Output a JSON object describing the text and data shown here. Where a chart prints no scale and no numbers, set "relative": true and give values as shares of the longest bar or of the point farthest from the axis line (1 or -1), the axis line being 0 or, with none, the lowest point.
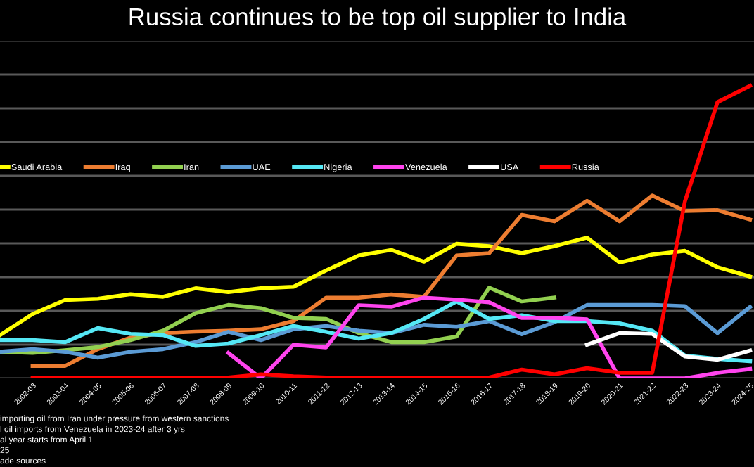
{
  "chart_data": {
    "type": "line",
    "title": "Russia continues to be top oil supplier to India",
    "relative": true,
    "grid": "y",
    "legend": "top",
    "marker": "none",
    "line_style": "solid",
    "categories": [
      null,
      "2002-03",
      "2003-04",
      "2004-05",
      "2005-06",
      "2006-07",
      "2007-08",
      "2008-09",
      "2009-10",
      "2010-11",
      "2011-12",
      "2012-13",
      "2013-14",
      "2014-15",
      "2015-16",
      "2016-17",
      "2017-18",
      "2018-19",
      "2019-20",
      "2020-21",
      "2021-22",
      "2022-23",
      "2023-24",
      "2024-25"
    ],
    "series": [
      {
        "name": "Saudi Arabia",
        "color": "#ffff00",
        "values": [
          0.148,
          0.22,
          0.268,
          0.272,
          0.288,
          0.279,
          0.308,
          0.295,
          0.308,
          0.313,
          0.369,
          0.42,
          0.439,
          0.399,
          0.46,
          0.452,
          0.428,
          0.452,
          0.481,
          0.396,
          0.423,
          0.436,
          0.38,
          0.348
        ]
      },
      {
        "name": "Iraq",
        "color": "#ed7d31",
        "values": [
          null,
          0.043,
          0.043,
          0.1,
          0.139,
          0.155,
          0.16,
          0.163,
          0.168,
          0.196,
          0.276,
          0.276,
          0.287,
          0.279,
          0.42,
          0.428,
          0.559,
          0.537,
          0.607,
          0.537,
          0.625,
          0.572,
          0.575,
          0.543
        ]
      },
      {
        "name": "Iran",
        "color": "#92d050",
        "values": [
          0.091,
          0.087,
          0.096,
          0.107,
          0.131,
          0.163,
          0.223,
          0.251,
          0.24,
          0.207,
          0.203,
          0.155,
          0.124,
          0.124,
          0.143,
          0.31,
          0.263,
          0.276,
          null,
          null,
          null,
          null,
          null,
          null
        ]
      },
      {
        "name": "UAE",
        "color": "#5b9bd5",
        "values": [
          0.091,
          0.1,
          0.091,
          0.071,
          0.091,
          0.1,
          0.124,
          0.159,
          0.131,
          0.168,
          0.179,
          0.163,
          0.155,
          0.183,
          0.176,
          0.196,
          0.151,
          0.192,
          0.251,
          0.251,
          0.251,
          0.247,
          0.155,
          0.244
        ]
      },
      {
        "name": "Nigeria",
        "color": "#55e8f5",
        "values": [
          0.131,
          0.131,
          0.124,
          0.172,
          0.152,
          0.148,
          0.111,
          0.119,
          0.148,
          0.179,
          0.159,
          0.136,
          0.155,
          0.203,
          0.263,
          0.203,
          0.216,
          0.196,
          0.196,
          0.188,
          0.163,
          0.078,
          0.067,
          0.059
        ]
      },
      {
        "name": "Venezuela",
        "color": "#ff44ee",
        "values": [
          null,
          null,
          null,
          null,
          null,
          null,
          null,
          0.087,
          0.0,
          0.115,
          0.106,
          0.25,
          0.245,
          0.276,
          0.269,
          0.26,
          0.207,
          0.207,
          0.202,
          0.0,
          0.0,
          0.0,
          0.019,
          0.032
        ]
      },
      {
        "name": "USA",
        "color": "#ffffff",
        "values": [
          null,
          null,
          null,
          null,
          null,
          null,
          null,
          null,
          null,
          null,
          null,
          null,
          null,
          null,
          null,
          null,
          null,
          null,
          0.115,
          0.155,
          0.152,
          0.075,
          0.064,
          0.095
        ]
      },
      {
        "name": "Russia",
        "color": "#ff0000",
        "values": [
          null,
          0.003,
          0.003,
          0.003,
          0.003,
          0.003,
          0.003,
          0.003,
          0.014,
          0.007,
          0.003,
          0.003,
          0.003,
          0.003,
          0.003,
          0.003,
          0.03,
          0.014,
          0.035,
          0.019,
          0.019,
          0.604,
          0.944,
          1.0
        ]
      }
    ],
    "annotations": [
      "importing oil from Iran under pressure from western sanctions",
      "l oil imports from Venezuela in 2023-24 after 3 yrs",
      "al year starts from April 1",
      "25",
      "ade sources"
    ]
  }
}
